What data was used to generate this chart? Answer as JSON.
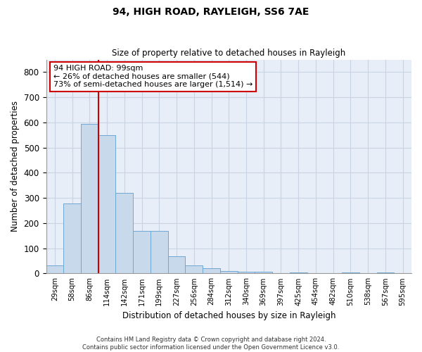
{
  "title1": "94, HIGH ROAD, RAYLEIGH, SS6 7AE",
  "title2": "Size of property relative to detached houses in Rayleigh",
  "xlabel": "Distribution of detached houses by size in Rayleigh",
  "ylabel": "Number of detached properties",
  "bar_labels": [
    "29sqm",
    "58sqm",
    "86sqm",
    "114sqm",
    "142sqm",
    "171sqm",
    "199sqm",
    "227sqm",
    "256sqm",
    "284sqm",
    "312sqm",
    "340sqm",
    "369sqm",
    "397sqm",
    "425sqm",
    "454sqm",
    "482sqm",
    "510sqm",
    "538sqm",
    "567sqm",
    "595sqm"
  ],
  "bar_values": [
    33,
    278,
    595,
    550,
    320,
    168,
    168,
    67,
    33,
    20,
    10,
    8,
    8,
    0,
    5,
    0,
    0,
    5,
    0,
    5,
    0
  ],
  "bar_color": "#c9d9ec",
  "bar_edge_color": "#6fa8d4",
  "vline_x_index": 2.5,
  "vline_color": "#cc0000",
  "annotation_text": "94 HIGH ROAD: 99sqm\n← 26% of detached houses are smaller (544)\n73% of semi-detached houses are larger (1,514) →",
  "annotation_box_color": "#ffffff",
  "annotation_box_edge": "#cc0000",
  "ylim": [
    0,
    850
  ],
  "yticks": [
    0,
    100,
    200,
    300,
    400,
    500,
    600,
    700,
    800
  ],
  "footnote": "Contains HM Land Registry data © Crown copyright and database right 2024.\nContains public sector information licensed under the Open Government Licence v3.0.",
  "grid_color": "#c8d4e3",
  "background_color": "#e8eef8"
}
